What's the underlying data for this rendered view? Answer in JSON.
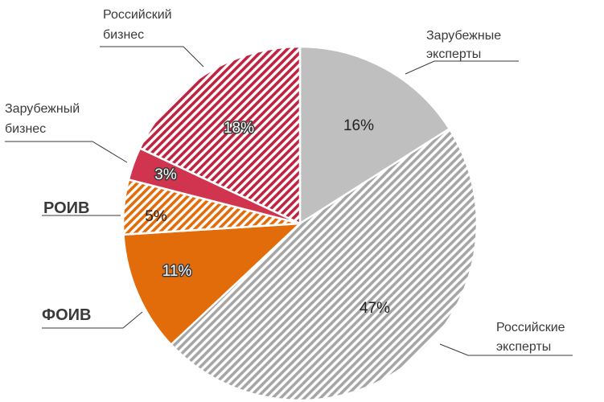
{
  "chart_data": {
    "type": "pie",
    "start_angle_deg": 0,
    "direction": "clockwise",
    "slices": [
      {
        "label_lines": [
          "Зарубежные",
          "эксперты"
        ],
        "value": 16,
        "pct_label": "16%",
        "color": "#bfbfbf",
        "pattern": "solid"
      },
      {
        "label_lines": [
          "Российские",
          "эксперты"
        ],
        "value": 47,
        "pct_label": "47%",
        "color": "#a6a6a6",
        "pattern": "hatch"
      },
      {
        "label_lines": [
          "ФОИВ"
        ],
        "value": 11,
        "pct_label": "11%",
        "color": "#e36c0a",
        "pattern": "solid"
      },
      {
        "label_lines": [
          "РОИВ"
        ],
        "value": 5,
        "pct_label": "5%",
        "color": "#e36c0a",
        "pattern": "hatch"
      },
      {
        "label_lines": [
          "Зарубежный",
          "бизнес"
        ],
        "value": 3,
        "pct_label": "3%",
        "color": "#d0344f",
        "pattern": "solid"
      },
      {
        "label_lines": [
          "Российский",
          "бизнес"
        ],
        "value": 18,
        "pct_label": "18%",
        "color": "#c0233f",
        "pattern": "hatch"
      }
    ]
  }
}
